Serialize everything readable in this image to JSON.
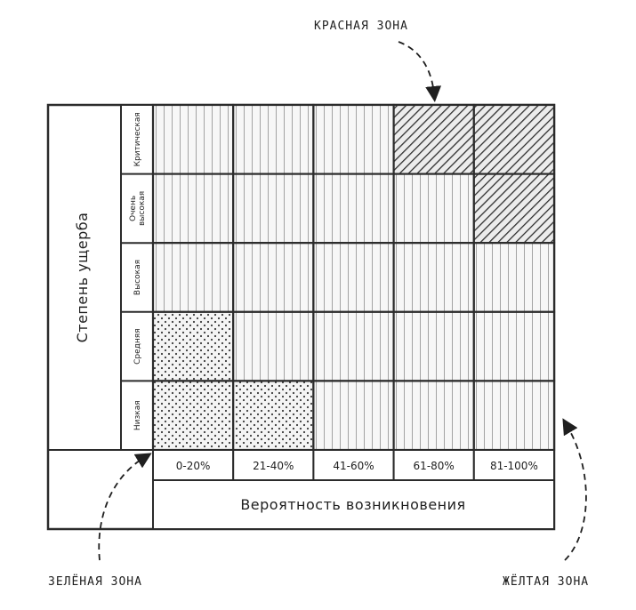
{
  "zones": {
    "red": "КРАСНАЯ ЗОНА",
    "green": "ЗЕЛЁНАЯ ЗОНА",
    "yellow": "ЖЁЛТАЯ ЗОНА"
  },
  "y_axis_title": "Степень ущерба",
  "x_axis_title": "Вероятность возникновения",
  "rows": [
    {
      "label": "Критическая"
    },
    {
      "label": "Очень высокая",
      "label_lines": [
        "Очень",
        "высокая"
      ]
    },
    {
      "label": "Высокая"
    },
    {
      "label": "Средняя"
    },
    {
      "label": "Низкая"
    }
  ],
  "columns": [
    "0-20%",
    "21-40%",
    "41-60%",
    "61-80%",
    "81-100%"
  ],
  "cells": [
    [
      "yellow",
      "yellow",
      "yellow",
      "red",
      "red"
    ],
    [
      "yellow",
      "yellow",
      "yellow",
      "yellow",
      "red"
    ],
    [
      "yellow",
      "yellow",
      "yellow",
      "yellow",
      "yellow"
    ],
    [
      "green",
      "yellow",
      "yellow",
      "yellow",
      "yellow"
    ],
    [
      "green",
      "green",
      "yellow",
      "yellow",
      "yellow"
    ]
  ],
  "colors": {
    "line": "#2b2b2b",
    "cell_bg": "#f7f7f7",
    "stripe": "#9a9a9a",
    "dots": "#3a3a3a",
    "hatch": "#333333"
  }
}
